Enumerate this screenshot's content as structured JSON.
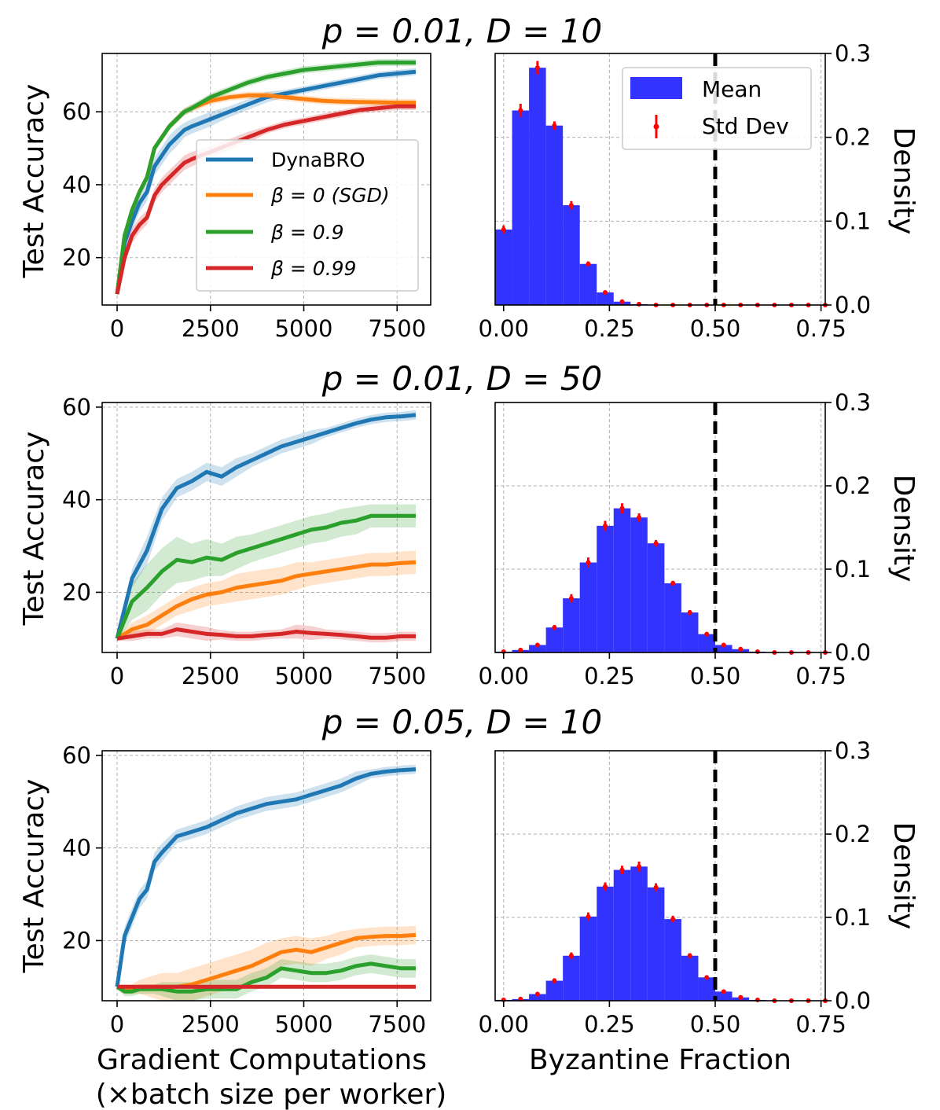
{
  "colors": {
    "dynabro": "#1f77b4",
    "sgd": "#ff7f0e",
    "beta09": "#2ca02c",
    "beta099": "#d62728",
    "hist_fill": "#3333ff",
    "errbar": "#ff0000",
    "threshold": "#000000"
  },
  "legend_acc": {
    "dynabro": "DynaBRO",
    "sgd_prefix": "β = 0 (SGD)",
    "beta09": "β = 0.9",
    "beta099": "β = 0.99"
  },
  "legend_hist": {
    "mean": "Mean",
    "std": "Std Dev"
  },
  "labels": {
    "acc_ylabel": "Test Accuracy",
    "density_ylabel": "Density",
    "xlabel_left_line1": "Gradient Computations",
    "xlabel_left_line2": "(×batch size per worker)",
    "xlabel_right": "Byzantine Fraction"
  },
  "chart_data": [
    {
      "type": "line",
      "title": "p = 0.01, D = 10",
      "xlabel": "",
      "ylabel": "Test Accuracy",
      "xlim": [
        -400,
        8400
      ],
      "ylim": [
        7,
        76
      ],
      "xticks": [
        0,
        2500,
        5000,
        7500
      ],
      "yticks": [
        20,
        40,
        60
      ],
      "xtick_labels": [
        "0",
        "2500",
        "5000",
        "7500"
      ],
      "ytick_labels": [
        "20",
        "40",
        "60"
      ],
      "legend": "center-right",
      "grid": true,
      "x": [
        0,
        200,
        400,
        600,
        800,
        1000,
        1200,
        1400,
        1600,
        1800,
        2000,
        2500,
        3000,
        3500,
        4000,
        4500,
        5000,
        5500,
        6000,
        6500,
        7000,
        7500,
        8000
      ],
      "series": [
        {
          "name": "DynaBRO",
          "values": [
            10,
            24,
            30,
            35,
            38,
            45,
            48,
            51,
            53,
            55,
            56,
            58,
            60,
            62,
            64,
            65,
            66,
            67,
            68,
            69,
            70,
            70.5,
            71
          ],
          "band": [
            0.5,
            2.5,
            2.5,
            2.5,
            2.5,
            2.5,
            2.5,
            2.5,
            2.5,
            2,
            2,
            2,
            1.5,
            1.5,
            1.5,
            1,
            1,
            1,
            1,
            1,
            1,
            1,
            1
          ]
        },
        {
          "name": "β = 0 (SGD)",
          "values": [
            10,
            26,
            33,
            38,
            42,
            50,
            53,
            56,
            58,
            60,
            61,
            63,
            64,
            64.5,
            64.5,
            64,
            63.5,
            63,
            62.8,
            62.7,
            62.6,
            62.5,
            62.5
          ],
          "band": [
            0.5,
            1,
            1,
            1,
            1,
            1,
            1,
            1,
            1,
            1,
            1,
            1,
            1,
            1,
            1,
            1,
            1,
            1,
            1,
            1,
            1,
            1,
            1
          ]
        },
        {
          "name": "β = 0.9",
          "values": [
            10,
            26,
            33,
            38,
            42,
            50,
            53,
            56,
            58,
            60,
            61,
            64,
            66,
            68,
            69.5,
            70.5,
            71.5,
            72,
            72.5,
            73,
            73.5,
            73.5,
            73.5
          ],
          "band": [
            0.5,
            1,
            1,
            1,
            1,
            1,
            1,
            1,
            1,
            1,
            1,
            1,
            1,
            1,
            1,
            1,
            1,
            1,
            1,
            1,
            1,
            1,
            1
          ]
        },
        {
          "name": "β = 0.99",
          "values": [
            10,
            20,
            26,
            29,
            31,
            37,
            40,
            42,
            44,
            46,
            47,
            49,
            51,
            53,
            55,
            56.5,
            57.5,
            58.5,
            59.5,
            60.5,
            61,
            61.5,
            61.5
          ],
          "band": [
            0.5,
            2,
            2,
            2,
            2,
            2,
            2,
            2,
            2,
            2,
            2,
            1.5,
            1.5,
            1.5,
            1,
            1,
            1,
            1,
            1,
            1,
            1,
            1,
            1
          ]
        }
      ]
    },
    {
      "type": "bar",
      "title": "",
      "xlabel": "",
      "ylabel": "Density",
      "xlim": [
        -0.02,
        0.76
      ],
      "ylim": [
        0,
        0.3
      ],
      "xticks": [
        0,
        0.25,
        0.5,
        0.75
      ],
      "yticks": [
        0,
        0.1,
        0.2,
        0.3
      ],
      "xtick_labels": [
        "0.00",
        "0.25",
        "0.50",
        "0.75"
      ],
      "ytick_labels": [
        "0.0",
        "0.1",
        "0.2",
        "0.3"
      ],
      "legend": "top-right",
      "grid": true,
      "threshold": 0.5,
      "bins": [
        0,
        0.04,
        0.08,
        0.12,
        0.16,
        0.2,
        0.24,
        0.28,
        0.32,
        0.36,
        0.4,
        0.44,
        0.48,
        0.52,
        0.56,
        0.6,
        0.64,
        0.68,
        0.72,
        0.76
      ],
      "values": [
        0.09,
        0.232,
        0.283,
        0.214,
        0.119,
        0.049,
        0.015,
        0.004,
        0.001,
        0,
        0,
        0,
        0,
        0,
        0,
        0,
        0,
        0,
        0,
        0
      ],
      "std": [
        0.005,
        0.008,
        0.008,
        0.005,
        0.005,
        0.003,
        0.002,
        0.001,
        0,
        0,
        0,
        0,
        0,
        0,
        0,
        0,
        0,
        0,
        0,
        0
      ]
    },
    {
      "type": "line",
      "title": "p = 0.01, D = 50",
      "xlabel": "",
      "ylabel": "Test Accuracy",
      "xlim": [
        -400,
        8400
      ],
      "ylim": [
        7,
        61
      ],
      "xticks": [
        0,
        2500,
        5000,
        7500
      ],
      "yticks": [
        20,
        40,
        60
      ],
      "xtick_labels": [
        "0",
        "2500",
        "5000",
        "7500"
      ],
      "ytick_labels": [
        "20",
        "40",
        "60"
      ],
      "legend": "none",
      "grid": true,
      "x": [
        0,
        400,
        800,
        1200,
        1600,
        2000,
        2400,
        2800,
        3200,
        3600,
        4000,
        4400,
        4800,
        5200,
        5600,
        6000,
        6400,
        6800,
        7200,
        7600,
        8000
      ],
      "series": [
        {
          "name": "DynaBRO",
          "values": [
            10,
            23,
            29,
            38,
            42.5,
            44,
            46,
            45,
            47,
            48.5,
            50,
            51.5,
            52.5,
            53.5,
            54.5,
            55.5,
            56.5,
            57.3,
            57.8,
            58,
            58.3
          ],
          "band": [
            0.5,
            2,
            3,
            2.5,
            2,
            2,
            2,
            2,
            2,
            1.5,
            1.5,
            1.5,
            1.5,
            1.5,
            1,
            1,
            1,
            1,
            1,
            1,
            1
          ]
        },
        {
          "name": "β = 0 (SGD)",
          "values": [
            10,
            12,
            13,
            15,
            17,
            18.5,
            19.5,
            20,
            21,
            21.5,
            22,
            22.5,
            23.5,
            24,
            24.5,
            25,
            25.5,
            26,
            26,
            26.3,
            26.5
          ],
          "band": [
            0.5,
            1.5,
            2,
            2,
            2,
            2.5,
            2.5,
            2.5,
            3,
            3,
            3,
            3,
            3,
            2.5,
            2.5,
            2.5,
            2.5,
            2.5,
            2.5,
            2.5,
            2.5
          ]
        },
        {
          "name": "β = 0.9",
          "values": [
            10,
            18,
            21,
            24.5,
            27,
            26.5,
            27.5,
            27,
            28.5,
            29.5,
            30.5,
            31.5,
            32.5,
            33.5,
            34,
            35,
            35.5,
            36.5,
            36.5,
            36.5,
            36.5
          ],
          "band": [
            0.5,
            4,
            5,
            5,
            5,
            4,
            4,
            3.5,
            3.5,
            3,
            3,
            3,
            3,
            3,
            3,
            3,
            3,
            2.5,
            2.5,
            2.5,
            2.5
          ]
        },
        {
          "name": "β = 0.99",
          "values": [
            10,
            10.5,
            11,
            11,
            12,
            11.5,
            11,
            10.8,
            10.5,
            10.5,
            10.8,
            11,
            11.5,
            11.2,
            11,
            10.8,
            10.5,
            10.2,
            10.2,
            10.5,
            10.5
          ],
          "band": [
            0.5,
            1,
            1,
            1,
            1.5,
            1.5,
            1.5,
            1,
            1,
            1,
            1,
            1,
            1.5,
            1.5,
            1,
            1,
            1,
            1,
            1,
            1,
            1
          ]
        }
      ]
    },
    {
      "type": "bar",
      "title": "",
      "xlabel": "",
      "ylabel": "Density",
      "xlim": [
        -0.02,
        0.76
      ],
      "ylim": [
        0,
        0.3
      ],
      "xticks": [
        0,
        0.25,
        0.5,
        0.75
      ],
      "yticks": [
        0,
        0.1,
        0.2,
        0.3
      ],
      "xtick_labels": [
        "0.00",
        "0.25",
        "0.50",
        "0.75"
      ],
      "ytick_labels": [
        "0.0",
        "0.1",
        "0.2",
        "0.3"
      ],
      "legend": "none",
      "grid": true,
      "threshold": 0.5,
      "bins": [
        0,
        0.04,
        0.08,
        0.12,
        0.16,
        0.2,
        0.24,
        0.28,
        0.32,
        0.36,
        0.4,
        0.44,
        0.48,
        0.52,
        0.56,
        0.6,
        0.64,
        0.68,
        0.72,
        0.76
      ],
      "values": [
        0.001,
        0.003,
        0.009,
        0.03,
        0.065,
        0.108,
        0.152,
        0.173,
        0.162,
        0.131,
        0.083,
        0.048,
        0.022,
        0.009,
        0.004,
        0.001,
        0,
        0,
        0,
        0
      ],
      "std": [
        0,
        0.001,
        0.002,
        0.003,
        0.005,
        0.006,
        0.006,
        0.006,
        0.005,
        0.004,
        0.003,
        0.003,
        0.002,
        0.001,
        0,
        0,
        0,
        0,
        0,
        0
      ]
    },
    {
      "type": "line",
      "title": "p = 0.05, D = 10",
      "xlabel": "Gradient Computations (×batch size per worker)",
      "ylabel": "Test Accuracy",
      "xlim": [
        -400,
        8400
      ],
      "ylim": [
        7,
        61
      ],
      "xticks": [
        0,
        2500,
        5000,
        7500
      ],
      "yticks": [
        20,
        40,
        60
      ],
      "xtick_labels": [
        "0",
        "2500",
        "5000",
        "7500"
      ],
      "ytick_labels": [
        "20",
        "40",
        "60"
      ],
      "legend": "none",
      "grid": true,
      "x": [
        0,
        200,
        400,
        600,
        800,
        1000,
        1200,
        1600,
        2000,
        2400,
        2800,
        3200,
        3600,
        4000,
        4400,
        4800,
        5200,
        5600,
        6000,
        6400,
        6800,
        7200,
        7600,
        8000
      ],
      "series": [
        {
          "name": "DynaBRO",
          "values": [
            10,
            21,
            25,
            29,
            31,
            37,
            39,
            42.5,
            43.5,
            44.5,
            46,
            47.5,
            48.5,
            49.5,
            50,
            50.5,
            51.5,
            52.5,
            53.5,
            55,
            56,
            56.5,
            56.8,
            57
          ],
          "band": [
            0.5,
            2,
            2,
            2,
            2,
            2,
            2,
            1.5,
            1.5,
            1.5,
            1.5,
            1.5,
            1.5,
            1.5,
            1.5,
            1.5,
            1.5,
            1.5,
            1.5,
            1.5,
            1,
            1,
            1,
            1
          ]
        },
        {
          "name": "β = 0 (SGD)",
          "values": [
            10,
            9.5,
            9.5,
            10,
            10,
            10,
            10,
            10,
            10.5,
            11.5,
            12.5,
            13.5,
            14.5,
            16,
            17.5,
            18,
            17.5,
            18.5,
            19.5,
            20.5,
            20.8,
            21,
            21,
            21.2
          ],
          "band": [
            0.5,
            1,
            1,
            1.5,
            2,
            2.5,
            3,
            3,
            3.5,
            3.5,
            3.5,
            3.5,
            3.5,
            3.5,
            3,
            3,
            3,
            2.5,
            2.5,
            2,
            2,
            2,
            2,
            2
          ]
        },
        {
          "name": "β = 0.9",
          "values": [
            10,
            9,
            9,
            9.5,
            9.5,
            9.5,
            9.5,
            9,
            9,
            9.5,
            9.5,
            9.5,
            11,
            12,
            14,
            13.5,
            13,
            13,
            13.5,
            14.5,
            15,
            14.5,
            14,
            14
          ],
          "band": [
            0.5,
            1,
            1,
            1,
            1,
            1,
            1.5,
            2,
            2,
            2,
            2,
            2,
            2,
            2,
            2,
            2,
            2,
            2,
            2,
            2,
            2,
            2,
            2,
            2
          ]
        },
        {
          "name": "β = 0.99",
          "values": [
            10,
            10,
            10,
            10,
            10,
            10,
            10,
            10,
            10,
            10,
            10,
            10,
            10,
            10,
            10,
            10,
            10,
            10,
            10,
            10,
            10,
            10,
            10,
            10
          ],
          "band": [
            0.3,
            0.3,
            0.3,
            0.3,
            0.3,
            0.3,
            0.3,
            0.3,
            0.3,
            0.3,
            0.3,
            0.3,
            0.3,
            0.3,
            0.3,
            0.3,
            0.3,
            0.3,
            0.3,
            0.3,
            0.3,
            0.3,
            0.3,
            0.3
          ]
        }
      ]
    },
    {
      "type": "bar",
      "title": "",
      "xlabel": "Byzantine Fraction",
      "ylabel": "Density",
      "xlim": [
        -0.02,
        0.76
      ],
      "ylim": [
        0,
        0.3
      ],
      "xticks": [
        0,
        0.25,
        0.5,
        0.75
      ],
      "yticks": [
        0,
        0.1,
        0.2,
        0.3
      ],
      "xtick_labels": [
        "0.00",
        "0.25",
        "0.50",
        "0.75"
      ],
      "ytick_labels": [
        "0.0",
        "0.1",
        "0.2",
        "0.3"
      ],
      "legend": "none",
      "grid": true,
      "threshold": 0.5,
      "bins": [
        0,
        0.04,
        0.08,
        0.12,
        0.16,
        0.2,
        0.24,
        0.28,
        0.32,
        0.36,
        0.4,
        0.44,
        0.48,
        0.52,
        0.56,
        0.6,
        0.64,
        0.68,
        0.72,
        0.76
      ],
      "values": [
        0.001,
        0.002,
        0.008,
        0.024,
        0.054,
        0.101,
        0.137,
        0.157,
        0.161,
        0.136,
        0.098,
        0.054,
        0.028,
        0.011,
        0.004,
        0.001,
        0,
        0,
        0,
        0
      ],
      "std": [
        0,
        0.001,
        0.002,
        0.003,
        0.004,
        0.005,
        0.005,
        0.005,
        0.006,
        0.005,
        0.004,
        0.003,
        0.002,
        0.001,
        0,
        0,
        0,
        0,
        0,
        0
      ]
    }
  ]
}
